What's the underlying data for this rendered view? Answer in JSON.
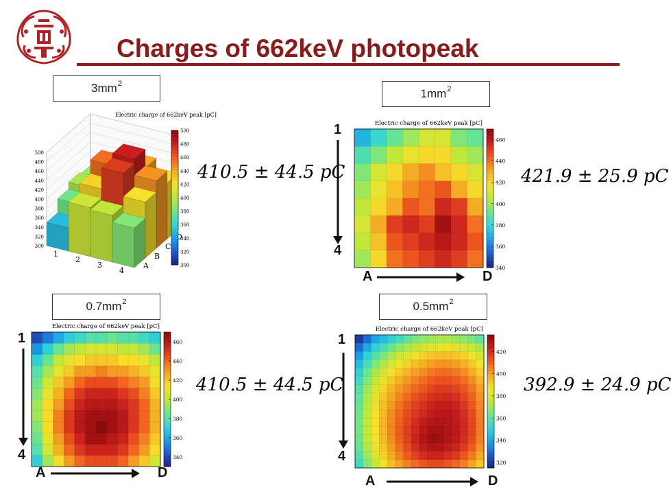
{
  "title": "Charges of 662keV photopeak",
  "logo": {
    "name": "university-seal",
    "color": "#b22222"
  },
  "colors": {
    "accent": "#8b1a1a"
  },
  "colormap": [
    "#1a237e",
    "#1e5bd0",
    "#1aa3e6",
    "#33d6d6",
    "#6ee68a",
    "#bfe83a",
    "#f5e12a",
    "#f5a623",
    "#f05a1e",
    "#c81e1e",
    "#8b0a0a"
  ],
  "panels": [
    {
      "id": "3mm",
      "size_label": "3mm",
      "size_sup": "2",
      "formula": "410.5 ± 44.5 pC",
      "chart_data": {
        "type": "bar3d",
        "title": "Electric charge of 662keV peak [pC]",
        "rows": [
          "1",
          "2",
          "3",
          "4"
        ],
        "cols": [
          "A",
          "B",
          "C",
          "D"
        ],
        "zlim": [
          300,
          500
        ],
        "zticks": [
          300,
          320,
          340,
          360,
          380,
          400,
          420,
          440,
          460,
          480,
          500
        ],
        "values": [
          [
            350,
            380,
            395,
            390
          ],
          [
            405,
            425,
            455,
            430
          ],
          [
            400,
            470,
            480,
            440
          ],
          [
            385,
            420,
            445,
            420
          ]
        ],
        "colorbar": {
          "min": 300,
          "max": 500,
          "ticks": [
            300,
            320,
            340,
            360,
            380,
            400,
            420,
            440,
            460,
            480,
            500
          ]
        }
      }
    },
    {
      "id": "1mm",
      "size_label": "1mm",
      "size_sup": "2",
      "formula": "421.9 ± 25.9 pC",
      "row_start": "1",
      "row_end": "4",
      "col_start": "A",
      "col_end": "D",
      "chart_data": {
        "type": "heatmap",
        "title": "Electric charge of 662keV peak [pC]",
        "n": 8,
        "vmin": 340,
        "vmax": 470,
        "colorbar_ticks": [
          340,
          360,
          380,
          400,
          420,
          440,
          460
        ],
        "values": [
          [
            370,
            380,
            390,
            400,
            410,
            410,
            395,
            390
          ],
          [
            385,
            395,
            405,
            415,
            420,
            420,
            405,
            400
          ],
          [
            395,
            410,
            420,
            430,
            435,
            425,
            420,
            410
          ],
          [
            400,
            415,
            425,
            435,
            440,
            445,
            430,
            420
          ],
          [
            405,
            420,
            430,
            445,
            440,
            455,
            450,
            430
          ],
          [
            410,
            430,
            450,
            455,
            450,
            465,
            455,
            440
          ],
          [
            405,
            425,
            445,
            450,
            455,
            460,
            455,
            445
          ],
          [
            400,
            420,
            440,
            445,
            450,
            455,
            450,
            440
          ]
        ]
      }
    },
    {
      "id": "0.7mm",
      "size_label": "0.7mm",
      "size_sup": "2",
      "formula": "410.5 ± 44.5 pC",
      "row_start": "1",
      "row_end": "4",
      "col_start": "A",
      "col_end": "D",
      "chart_data": {
        "type": "heatmap",
        "title": "Electric charge of 662keV peak [pC]",
        "n": 12,
        "vmin": 330,
        "vmax": 470,
        "colorbar_ticks": [
          340,
          360,
          380,
          400,
          420,
          440,
          460
        ],
        "values": [
          [
            340,
            350,
            360,
            370,
            375,
            380,
            380,
            385,
            380,
            380,
            375,
            370
          ],
          [
            355,
            370,
            385,
            395,
            400,
            405,
            405,
            405,
            400,
            400,
            395,
            385
          ],
          [
            370,
            385,
            400,
            410,
            415,
            420,
            420,
            420,
            415,
            415,
            410,
            400
          ],
          [
            380,
            395,
            410,
            420,
            430,
            430,
            435,
            430,
            430,
            425,
            420,
            410
          ],
          [
            385,
            405,
            420,
            430,
            440,
            445,
            445,
            445,
            440,
            435,
            430,
            415
          ],
          [
            390,
            410,
            425,
            440,
            450,
            455,
            455,
            455,
            450,
            445,
            435,
            420
          ],
          [
            395,
            415,
            430,
            445,
            455,
            460,
            460,
            460,
            455,
            450,
            440,
            425
          ],
          [
            395,
            415,
            435,
            450,
            460,
            465,
            465,
            465,
            460,
            450,
            440,
            425
          ],
          [
            390,
            415,
            435,
            450,
            460,
            465,
            470,
            465,
            460,
            450,
            440,
            425
          ],
          [
            385,
            410,
            430,
            445,
            455,
            465,
            465,
            460,
            455,
            445,
            435,
            420
          ],
          [
            380,
            405,
            425,
            440,
            450,
            455,
            455,
            455,
            450,
            440,
            430,
            415
          ],
          [
            370,
            395,
            415,
            430,
            440,
            445,
            445,
            445,
            440,
            430,
            420,
            405
          ]
        ]
      }
    },
    {
      "id": "0.5mm",
      "size_label": "0.5mm",
      "size_sup": "2",
      "formula": "392.9 ± 24.9 pC",
      "row_start": "1",
      "row_end": "4",
      "col_start": "A",
      "col_end": "D",
      "chart_data": {
        "type": "heatmap",
        "title": "Electric charge of 662keV peak [pC]",
        "n": 16,
        "vmin": 315,
        "vmax": 435,
        "colorbar_ticks": [
          320,
          340,
          360,
          380,
          400,
          420
        ],
        "values": [
          [
            320,
            330,
            340,
            345,
            350,
            355,
            360,
            365,
            368,
            370,
            372,
            372,
            370,
            368,
            365,
            360
          ],
          [
            330,
            340,
            350,
            355,
            362,
            368,
            372,
            376,
            380,
            382,
            384,
            384,
            382,
            380,
            376,
            372
          ],
          [
            338,
            350,
            358,
            365,
            372,
            378,
            382,
            386,
            390,
            392,
            394,
            394,
            392,
            390,
            386,
            380
          ],
          [
            345,
            356,
            366,
            373,
            380,
            386,
            390,
            394,
            397,
            400,
            402,
            402,
            400,
            397,
            392,
            386
          ],
          [
            350,
            362,
            372,
            380,
            387,
            392,
            396,
            400,
            403,
            406,
            408,
            408,
            406,
            403,
            398,
            391
          ],
          [
            354,
            366,
            376,
            385,
            392,
            397,
            401,
            405,
            408,
            411,
            413,
            413,
            411,
            408,
            403,
            396
          ],
          [
            358,
            370,
            380,
            389,
            396,
            401,
            405,
            409,
            412,
            415,
            417,
            417,
            415,
            412,
            407,
            400
          ],
          [
            360,
            372,
            383,
            392,
            399,
            404,
            409,
            413,
            416,
            419,
            420,
            421,
            419,
            415,
            410,
            402
          ],
          [
            362,
            374,
            385,
            394,
            401,
            407,
            412,
            416,
            419,
            422,
            424,
            424,
            422,
            418,
            412,
            404
          ],
          [
            363,
            375,
            386,
            395,
            403,
            409,
            414,
            418,
            421,
            424,
            426,
            426,
            424,
            420,
            414,
            405
          ],
          [
            364,
            376,
            387,
            396,
            404,
            410,
            415,
            420,
            424,
            427,
            428,
            427,
            425,
            421,
            415,
            406
          ],
          [
            364,
            376,
            387,
            396,
            404,
            411,
            416,
            421,
            426,
            430,
            430,
            428,
            426,
            421,
            415,
            406
          ],
          [
            363,
            375,
            386,
            395,
            403,
            410,
            416,
            422,
            428,
            432,
            431,
            428,
            425,
            420,
            414,
            405
          ],
          [
            361,
            373,
            384,
            393,
            401,
            408,
            414,
            420,
            425,
            428,
            428,
            425,
            422,
            417,
            411,
            402
          ],
          [
            358,
            370,
            381,
            390,
            398,
            405,
            411,
            416,
            420,
            422,
            422,
            420,
            417,
            412,
            406,
            398
          ],
          [
            354,
            366,
            377,
            386,
            394,
            400,
            405,
            409,
            412,
            414,
            414,
            412,
            409,
            405,
            399,
            392
          ]
        ]
      }
    }
  ]
}
